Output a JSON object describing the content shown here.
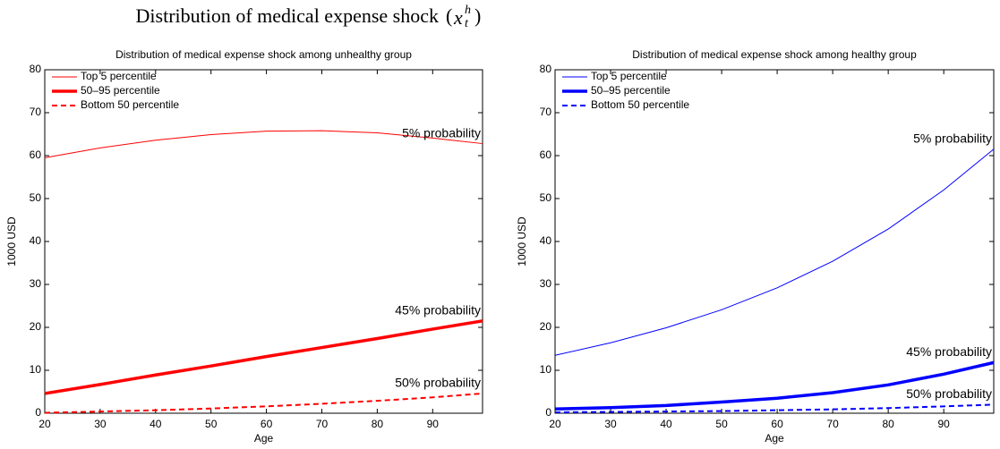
{
  "title": {
    "text": "Distribution of medical expense shock",
    "var": "x",
    "sub": "t",
    "sup": "h"
  },
  "chart_data": [
    {
      "type": "line",
      "title": "Distribution of medical expense shock among unhealthy group",
      "x_label": "Age",
      "y_label": "1000 USD",
      "x": [
        20,
        30,
        40,
        50,
        60,
        70,
        80,
        90,
        99
      ],
      "xlim": [
        20,
        99
      ],
      "ylim": [
        0,
        80
      ],
      "xticks": [
        20,
        30,
        40,
        50,
        60,
        70,
        80,
        90
      ],
      "yticks": [
        0,
        10,
        20,
        30,
        40,
        50,
        60,
        70,
        80
      ],
      "legend": "upper left",
      "series": [
        {
          "name": "Top 5 percentile",
          "color": "#ff0000",
          "style": "thin",
          "annotation": "5% probability",
          "values": [
            59.5,
            61.8,
            63.6,
            64.9,
            65.7,
            65.8,
            65.3,
            64.1,
            62.8
          ]
        },
        {
          "name": "50–95 percentile",
          "color": "#ff0000",
          "style": "thick",
          "annotation": "45% probability",
          "values": [
            4.6,
            6.7,
            8.9,
            11.0,
            13.2,
            15.3,
            17.4,
            19.6,
            21.5
          ]
        },
        {
          "name": "Bottom 50 percentile",
          "color": "#ff0000",
          "style": "dashed",
          "annotation": "50% probability",
          "values": [
            0.1,
            0.4,
            0.7,
            1.1,
            1.6,
            2.2,
            2.9,
            3.7,
            4.6
          ]
        }
      ]
    },
    {
      "type": "line",
      "title": "Distribution of medical expense shock among healthy group",
      "x_label": "Age",
      "y_label": "1000 USD",
      "x": [
        20,
        30,
        40,
        50,
        60,
        70,
        80,
        90,
        99
      ],
      "xlim": [
        20,
        99
      ],
      "ylim": [
        0,
        80
      ],
      "xticks": [
        20,
        30,
        40,
        50,
        60,
        70,
        80,
        90
      ],
      "yticks": [
        0,
        10,
        20,
        30,
        40,
        50,
        60,
        70,
        80
      ],
      "legend": "upper left",
      "series": [
        {
          "name": "Top 5 percentile",
          "color": "#0000ff",
          "style": "thin",
          "annotation": "5% probability",
          "values": [
            13.5,
            16.4,
            19.9,
            24.1,
            29.2,
            35.4,
            42.9,
            52.0,
            61.5
          ]
        },
        {
          "name": "50–95 percentile",
          "color": "#0000ff",
          "style": "thick",
          "annotation": "45% probability",
          "values": [
            1.0,
            1.3,
            1.8,
            2.6,
            3.5,
            4.8,
            6.6,
            9.1,
            11.8
          ]
        },
        {
          "name": "Bottom 50 percentile",
          "color": "#0000ff",
          "style": "dashed",
          "annotation": "50% probability",
          "values": [
            0.2,
            0.3,
            0.4,
            0.5,
            0.7,
            0.9,
            1.2,
            1.6,
            2.0
          ]
        }
      ]
    }
  ]
}
